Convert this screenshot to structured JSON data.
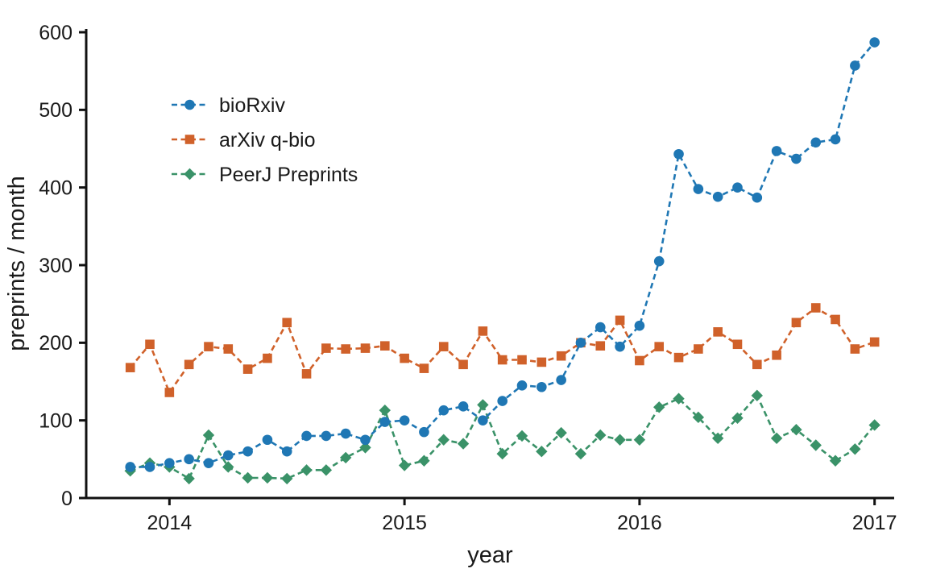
{
  "chart_data": {
    "type": "line",
    "title": "",
    "xlabel": "year",
    "ylabel": "preprints / month",
    "grid": false,
    "legend_position": "upper-left",
    "ylim": [
      0,
      600
    ],
    "y_ticks": [
      0,
      100,
      200,
      300,
      400,
      500,
      600
    ],
    "x_tick_labels": [
      "2014",
      "2015",
      "2016",
      "2017"
    ],
    "x_tick_month_index": [
      2,
      14,
      26,
      38
    ],
    "x_months": [
      "2013-11",
      "2013-12",
      "2014-01",
      "2014-02",
      "2014-03",
      "2014-04",
      "2014-05",
      "2014-06",
      "2014-07",
      "2014-08",
      "2014-09",
      "2014-10",
      "2014-11",
      "2014-12",
      "2015-01",
      "2015-02",
      "2015-03",
      "2015-04",
      "2015-05",
      "2015-06",
      "2015-07",
      "2015-08",
      "2015-09",
      "2015-10",
      "2015-11",
      "2015-12",
      "2016-01",
      "2016-02",
      "2016-03",
      "2016-04",
      "2016-05",
      "2016-06",
      "2016-07",
      "2016-08",
      "2016-09",
      "2016-10",
      "2016-11",
      "2016-12",
      "2017-01"
    ],
    "series": [
      {
        "name": "bioRxiv",
        "color": "#1f77b4",
        "marker": "circle",
        "linestyle": "dashed",
        "values": [
          40,
          40,
          45,
          50,
          45,
          55,
          60,
          75,
          60,
          80,
          80,
          83,
          75,
          98,
          100,
          85,
          113,
          118,
          100,
          125,
          145,
          143,
          152,
          200,
          220,
          195,
          222,
          305,
          443,
          398,
          388,
          400,
          387,
          447,
          437,
          458,
          462,
          557,
          587
        ]
      },
      {
        "name": "arXiv q-bio",
        "color": "#d0612a",
        "marker": "square",
        "linestyle": "dashed",
        "values": [
          168,
          198,
          136,
          172,
          195,
          192,
          166,
          180,
          226,
          160,
          193,
          192,
          193,
          196,
          180,
          167,
          195,
          172,
          215,
          178,
          178,
          175,
          183,
          200,
          196,
          229,
          177,
          195,
          181,
          192,
          214,
          198,
          172,
          184,
          226,
          245,
          230,
          192,
          201
        ]
      },
      {
        "name": "PeerJ Preprints",
        "color": "#3a9268",
        "marker": "diamond",
        "linestyle": "dashed",
        "values": [
          35,
          45,
          40,
          25,
          81,
          40,
          26,
          26,
          25,
          36,
          36,
          52,
          65,
          113,
          42,
          48,
          75,
          70,
          120,
          57,
          80,
          60,
          84,
          57,
          81,
          75,
          75,
          117,
          128,
          104,
          77,
          103,
          132,
          77,
          88,
          68,
          48,
          63,
          94
        ]
      }
    ],
    "axis_color": "#111111",
    "text_color": "#1a1a1a"
  }
}
